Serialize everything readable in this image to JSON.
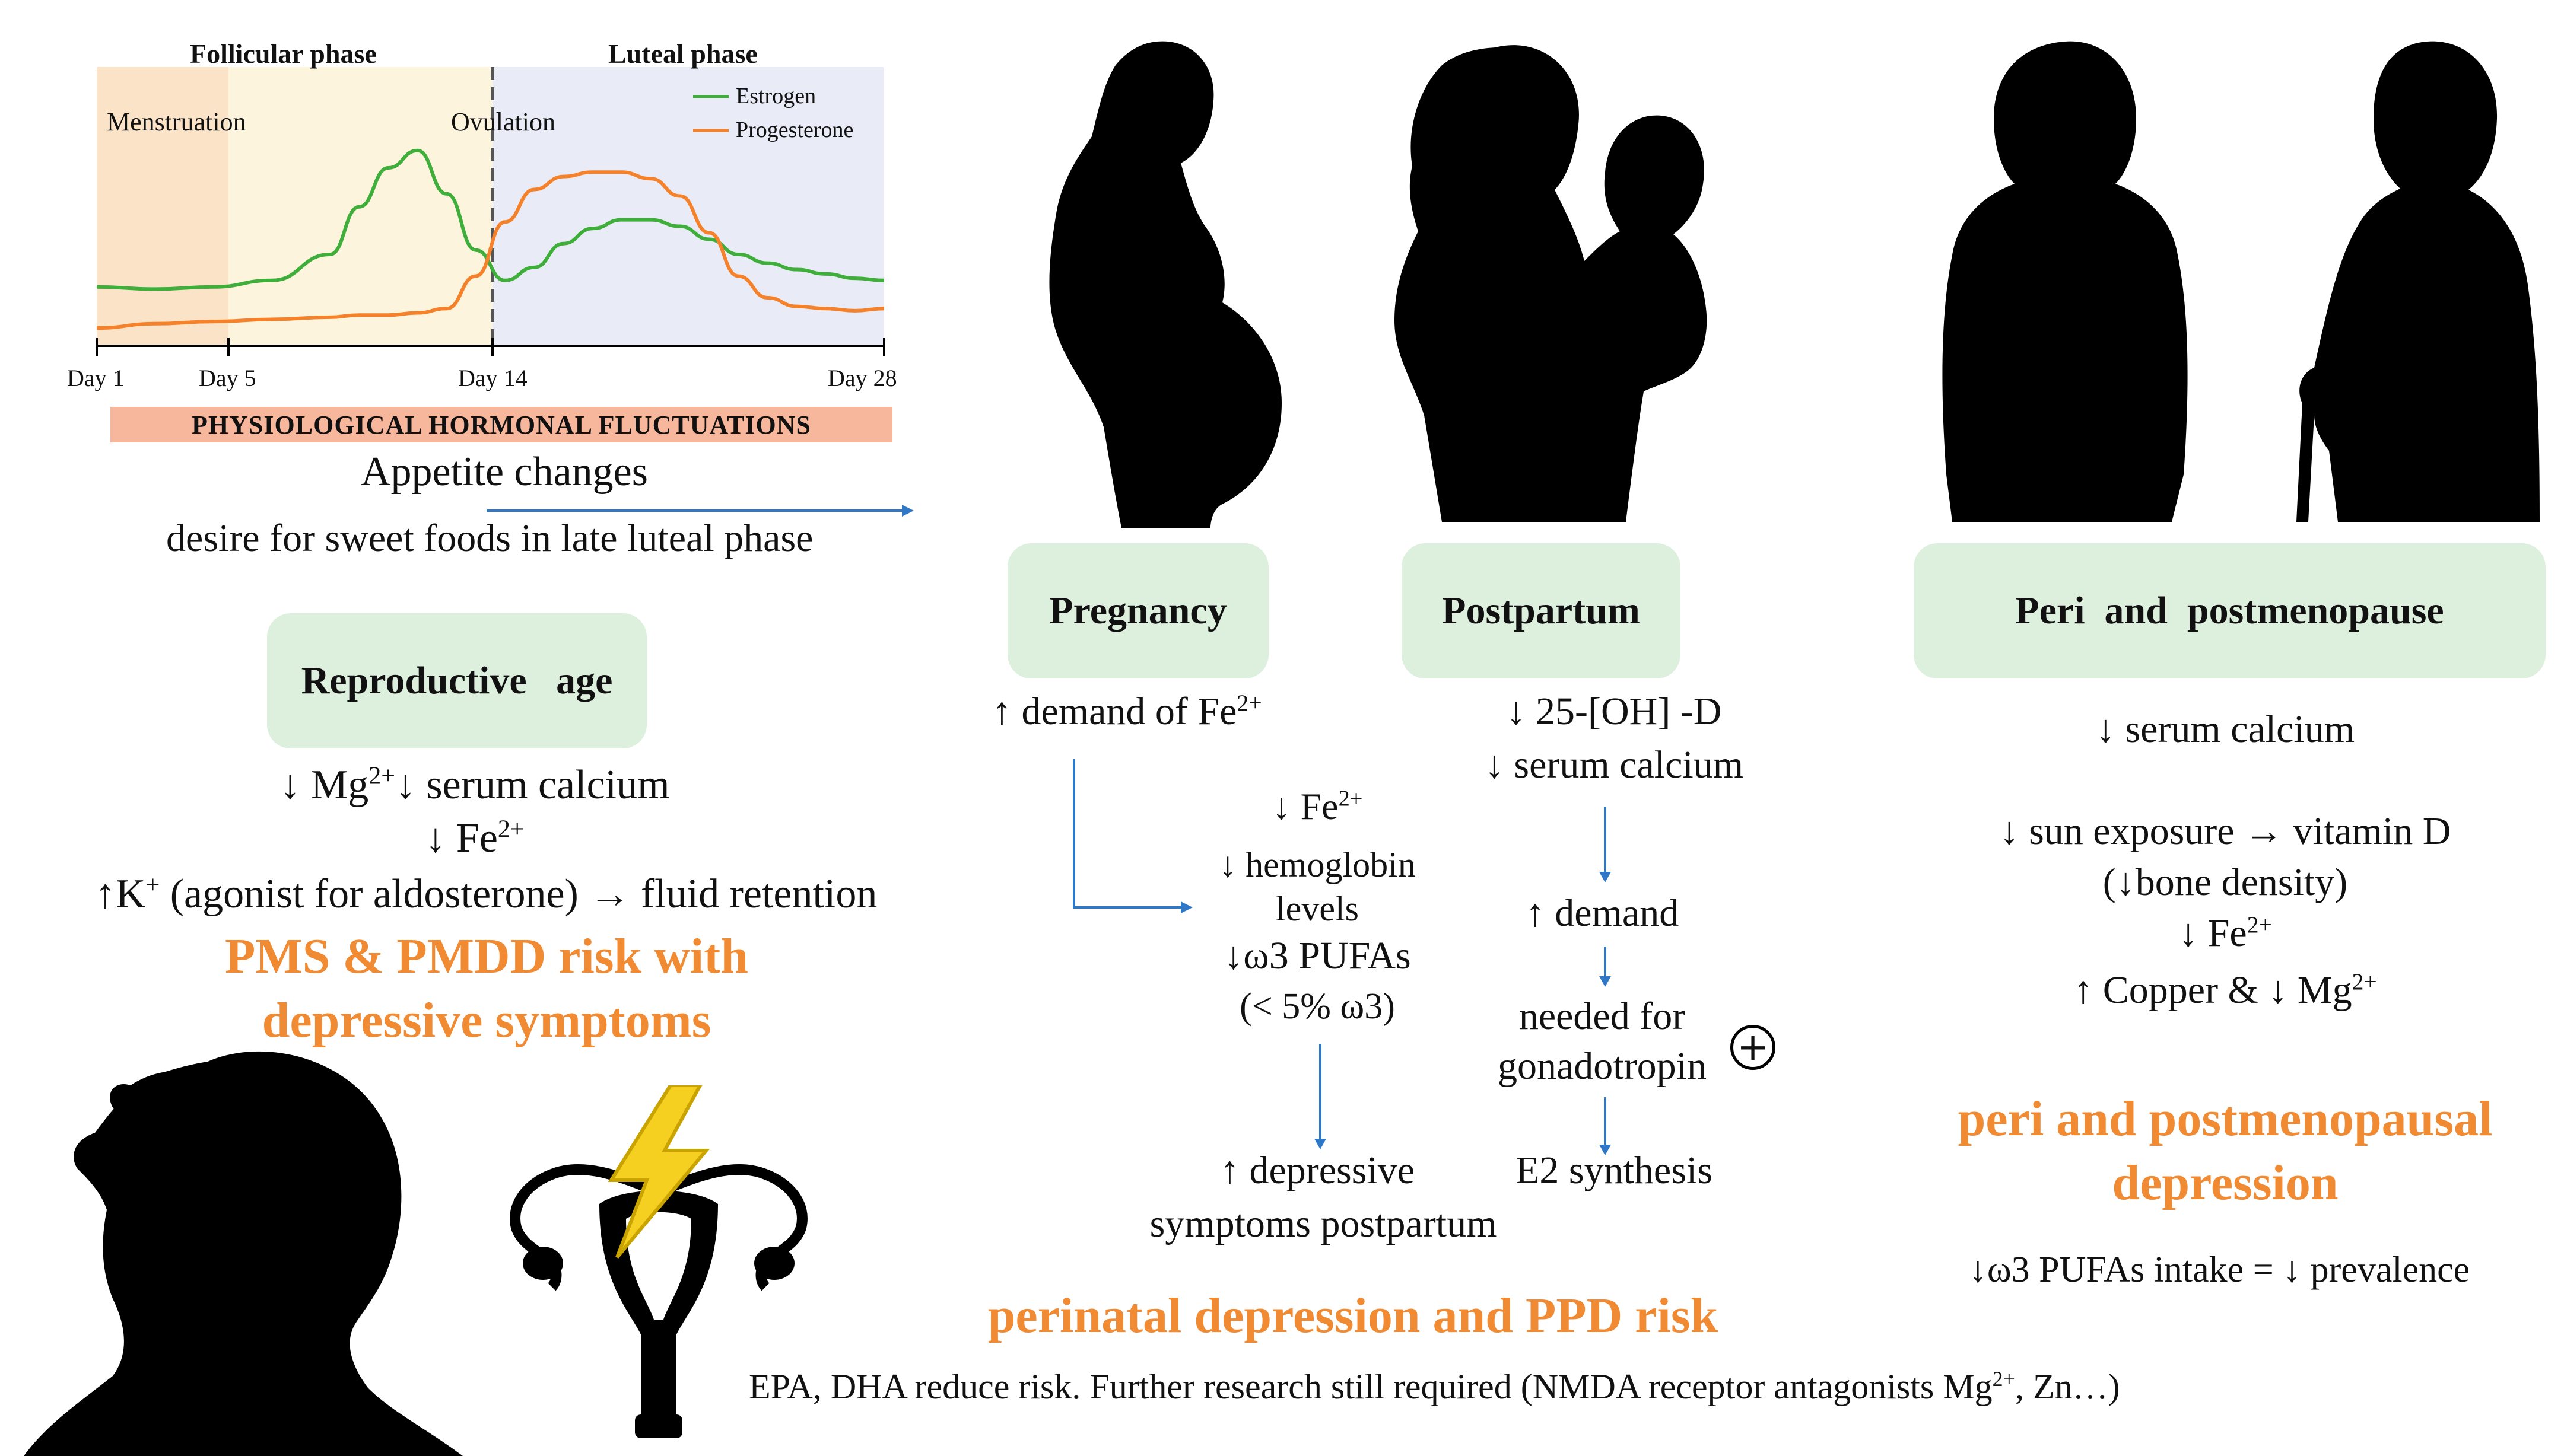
{
  "chart": {
    "title_follicular": "Follicular phase",
    "title_luteal": "Luteal phase",
    "menstruation": "Menstruation",
    "ovulation": "Ovulation",
    "legend": [
      {
        "label": "Estrogen",
        "color": "#3FAE3A"
      },
      {
        "label": "Progesterone",
        "color": "#F5822A"
      }
    ],
    "ticks": [
      "Day 1",
      "Day 5",
      "Day 14",
      "Day 28"
    ],
    "banner": "PHYSIOLOGICAL HORMONAL FLUCTUATIONS"
  },
  "chart_data": {
    "type": "line",
    "x": [
      1,
      3,
      5,
      7,
      9,
      10,
      11,
      12,
      13,
      14,
      15,
      16,
      17,
      18,
      19,
      20,
      21,
      22,
      23,
      24,
      25,
      26,
      27,
      28
    ],
    "series": [
      {
        "name": "Estrogen",
        "values": [
          0.25,
          0.24,
          0.25,
          0.28,
          0.4,
          0.62,
          0.8,
          0.88,
          0.68,
          0.42,
          0.28,
          0.34,
          0.45,
          0.52,
          0.56,
          0.56,
          0.53,
          0.47,
          0.4,
          0.36,
          0.33,
          0.31,
          0.29,
          0.28
        ]
      },
      {
        "name": "Progesterone",
        "values": [
          0.06,
          0.08,
          0.09,
          0.1,
          0.11,
          0.12,
          0.12,
          0.13,
          0.15,
          0.3,
          0.55,
          0.7,
          0.76,
          0.78,
          0.78,
          0.75,
          0.67,
          0.5,
          0.3,
          0.2,
          0.16,
          0.15,
          0.14,
          0.15
        ]
      }
    ],
    "xlabel": "Day",
    "phases": [
      "Menstruation",
      "Follicular phase",
      "Ovulation",
      "Luteal phase"
    ]
  },
  "left": {
    "appetite": "Appetite  changes",
    "sweet": "desire for sweet foods in late luteal phase",
    "pill": "Reproductive   age",
    "mg_arrow": "↓ Mg",
    "mg_sup": "2+",
    "mg_rest": "↓ serum calcium",
    "fe": "↓ Fe",
    "fe_sup": "2+",
    "k_pre": "↑K",
    "k_sup": "+",
    "k_rest": " (agonist for aldosterone) → fluid retention",
    "outcome_1": "PMS & PMDD risk with",
    "outcome_2": "depressive symptoms"
  },
  "pregnancy": {
    "pill": "Pregnancy",
    "demand": "↑ demand of Fe",
    "demand_sup": "2+",
    "fe": "↓ Fe",
    "fe_sup": "2+",
    "hemo_1": "↓ hemoglobin",
    "hemo_2": "levels",
    "pufa": "↓ω3 PUFAs",
    "pufa_pct": "(< 5%  ω3)",
    "dep_1": "↑ depressive",
    "dep_2": "symptoms postpartum"
  },
  "postpartum": {
    "pill": "Postpartum",
    "vitd": "↓ 25-[OH] -D",
    "calcium": "↓ serum calcium",
    "demand": "↑ demand",
    "needed_1": "needed for",
    "needed_2": "gonadotropin",
    "plus": "+",
    "e2": "E2  synthesis"
  },
  "perinatal": {
    "outcome": "perinatal depression and PPD risk",
    "note_pre": "EPA, DHA reduce risk. Further research still required (NMDA receptor antagonists Mg",
    "note_sup": "2+",
    "note_post": ", Zn…)"
  },
  "menopause": {
    "pill": "Peri  and  postmenopause",
    "calcium": "↓ serum calcium",
    "sun": "↓ sun exposure → vitamin  D",
    "bone": "(↓bone density)",
    "fe": "↓ Fe",
    "fe_sup": "2+",
    "copper": "↑ Copper & ↓ Mg",
    "copper_sup": "2+",
    "outcome_1": "peri  and  postmenopausal",
    "outcome_2": "depression",
    "pufa": "↓ω3 PUFAs  intake = ↓ prevalence"
  }
}
